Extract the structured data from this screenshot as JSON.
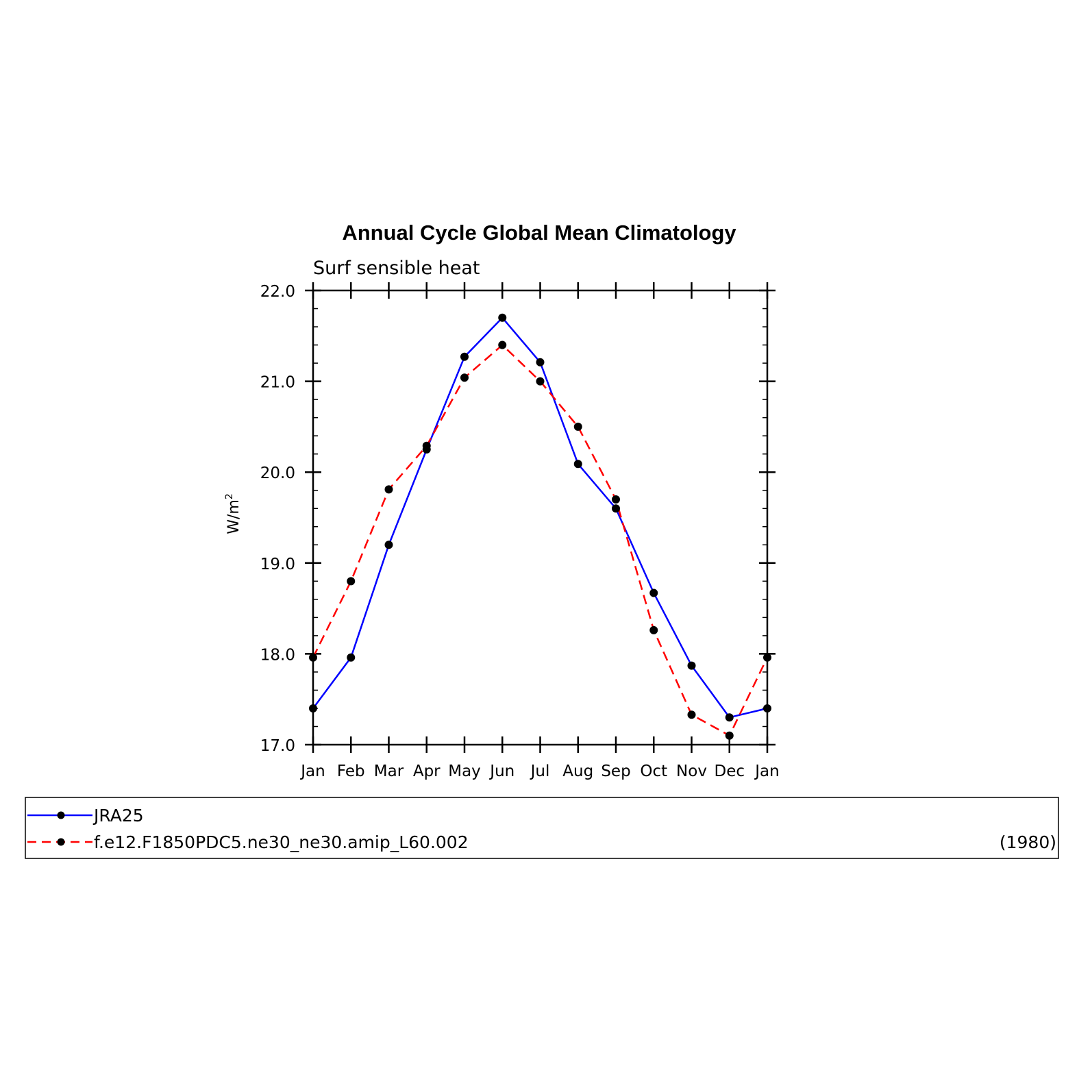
{
  "chart_data": {
    "type": "line",
    "title": "Annual Cycle Global Mean Climatology",
    "subtitle": "Surf sensible heat",
    "ylabel": "W/m",
    "ylabel_sup": "2",
    "xlabel": "",
    "ylim": [
      17.0,
      22.0
    ],
    "yticks": [
      "17.0",
      "18.0",
      "19.0",
      "20.0",
      "21.0",
      "22.0"
    ],
    "categories": [
      "Jan",
      "Feb",
      "Mar",
      "Apr",
      "May",
      "Jun",
      "Jul",
      "Aug",
      "Sep",
      "Oct",
      "Nov",
      "Dec",
      "Jan"
    ],
    "series": [
      {
        "name": "JRA25",
        "color": "#0000ff",
        "dash": "solid",
        "values": [
          17.4,
          17.96,
          19.2,
          20.25,
          21.27,
          21.7,
          21.21,
          20.09,
          19.6,
          18.67,
          17.87,
          17.3,
          17.4
        ]
      },
      {
        "name": "f.e12.F1850PDC5.ne30_ne30.amip_L60.002",
        "color": "#ff0000",
        "dash": "dashed",
        "values": [
          17.96,
          18.8,
          19.81,
          20.29,
          21.04,
          21.4,
          21.0,
          20.5,
          19.7,
          18.26,
          17.33,
          17.1,
          17.96
        ]
      }
    ],
    "legend_note": "(1980)",
    "legend_position": "bottom",
    "grid": false
  }
}
